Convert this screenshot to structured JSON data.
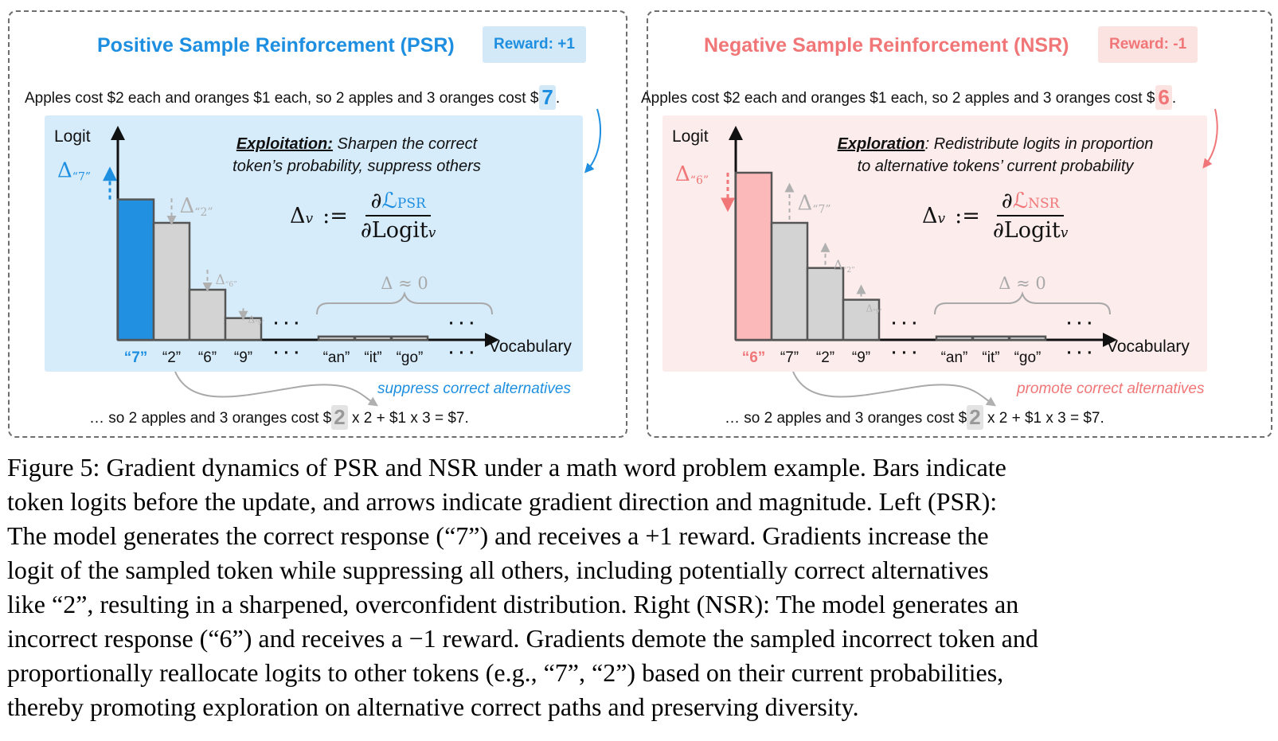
{
  "psr": {
    "title": "Positive Sample Reinforcement (PSR)",
    "reward": "Reward: +1",
    "prompt": "Apples cost $2 each and oranges $1 each, so 2 apples and 3 oranges cost $",
    "sampled_token": "7",
    "period": ".",
    "heading_bold": "Exploitation:",
    "heading_rest_1": " Sharpen the correct",
    "heading_line_2": "token’s probability, suppress others",
    "formula_lhs": "Δ",
    "formula_lhs_sub": "v",
    "formula_assign": ":=",
    "formula_num_prefix": "∂",
    "formula_num_l": "ℒ",
    "formula_num_sub": "PSR",
    "formula_den": "∂Logit",
    "formula_den_sub": "v",
    "ylabel": "Logit",
    "xlabel": "Vocabulary",
    "note": "suppress correct alternatives",
    "continuation_pre": "… so 2 apples and 3 oranges cost $",
    "continuation_token": "2",
    "continuation_post": " x 2 + $1 x 3 = $7."
  },
  "nsr": {
    "title": "Negative Sample Reinforcement (NSR)",
    "reward": "Reward: -1",
    "prompt": "Apples cost $2 each and oranges $1 each, so 2 apples and 3 oranges cost $",
    "sampled_token": "6",
    "period": ".",
    "heading_bold": "Exploration",
    "heading_rest_1": ": Redistribute logits in proportion",
    "heading_line_2": "to alternative tokens’ current probability",
    "formula_lhs": "Δ",
    "formula_lhs_sub": "v",
    "formula_assign": ":=",
    "formula_num_prefix": "∂",
    "formula_num_l": "ℒ",
    "formula_num_sub": "NSR",
    "formula_den": "∂Logit",
    "formula_den_sub": "v",
    "ylabel": "Logit",
    "xlabel": "Vocabulary",
    "note": "promote correct alternatives",
    "continuation_pre": "… so 2 apples and 3 oranges cost $",
    "continuation_token": "2",
    "continuation_post": " x 2 + $1 x 3 = $7."
  },
  "chart_data": [
    {
      "type": "bar",
      "panel": "psr",
      "ylabel": "Logit",
      "xlabel": "Vocabulary",
      "ellipsis": "· · ·",
      "approx_label": "Δ ≈ 0",
      "categories": [
        "“7”",
        "“2”",
        "“6”",
        "“9”",
        "“an”",
        "“it”",
        "“go”"
      ],
      "logits": [
        0.84,
        0.7,
        0.3,
        0.13,
        0.02,
        0.02,
        0.02
      ],
      "highlight_index": 0,
      "highlight_color": "#2290e0",
      "deltas": [
        {
          "index": 0,
          "label": "Δ",
          "sub": "“7”",
          "direction": "up",
          "magnitude": 0.28
        },
        {
          "index": 1,
          "label": "Δ",
          "sub": "“2”",
          "direction": "down",
          "magnitude": 0.25
        },
        {
          "index": 2,
          "label": "Δ",
          "sub": "“6”",
          "direction": "down",
          "magnitude": 0.2
        },
        {
          "index": 3,
          "label": "Δ",
          "sub": "“9”",
          "direction": "down",
          "magnitude": 0.09
        }
      ]
    },
    {
      "type": "bar",
      "panel": "nsr",
      "ylabel": "Logit",
      "xlabel": "Vocabulary",
      "ellipsis": "· · ·",
      "approx_label": "Δ ≈ 0",
      "categories": [
        "“6”",
        "“7”",
        "“2”",
        "“9”",
        "“an”",
        "“it”",
        "“go”"
      ],
      "logits": [
        1.0,
        0.7,
        0.43,
        0.24,
        0.02,
        0.02,
        0.02
      ],
      "highlight_index": 0,
      "highlight_color": "#fbb9b9",
      "deltas": [
        {
          "index": 0,
          "label": "Δ",
          "sub": "“6”",
          "direction": "down",
          "magnitude": 0.35
        },
        {
          "index": 1,
          "label": "Δ",
          "sub": "“7”",
          "direction": "up",
          "magnitude": 0.35
        },
        {
          "index": 2,
          "label": "Δ",
          "sub": "“2”",
          "direction": "up",
          "magnitude": 0.19
        },
        {
          "index": 3,
          "label": "Δ",
          "sub": "“9”",
          "direction": "up",
          "magnitude": 0.08
        }
      ]
    }
  ],
  "caption": [
    "Figure 5: Gradient dynamics of PSR and NSR under a math word problem example. Bars indicate",
    "token logits before the update, and arrows indicate gradient direction and magnitude. Left (PSR):",
    "The model generates the correct response (“7”) and receives a +1 reward. Gradients increase the",
    "logit of the sampled token while suppressing all others, including potentially correct alternatives",
    "like “2”, resulting in a sharpened, overconfident distribution. Right (NSR): The model generates an",
    "incorrect response (“6”) and receives a −1 reward. Gradients demote the sampled incorrect token and",
    "proportionally reallocate logits to other tokens (e.g., “7”, “2”) based on their current probabilities,",
    "thereby promoting exploration on alternative correct paths and preserving diversity."
  ]
}
